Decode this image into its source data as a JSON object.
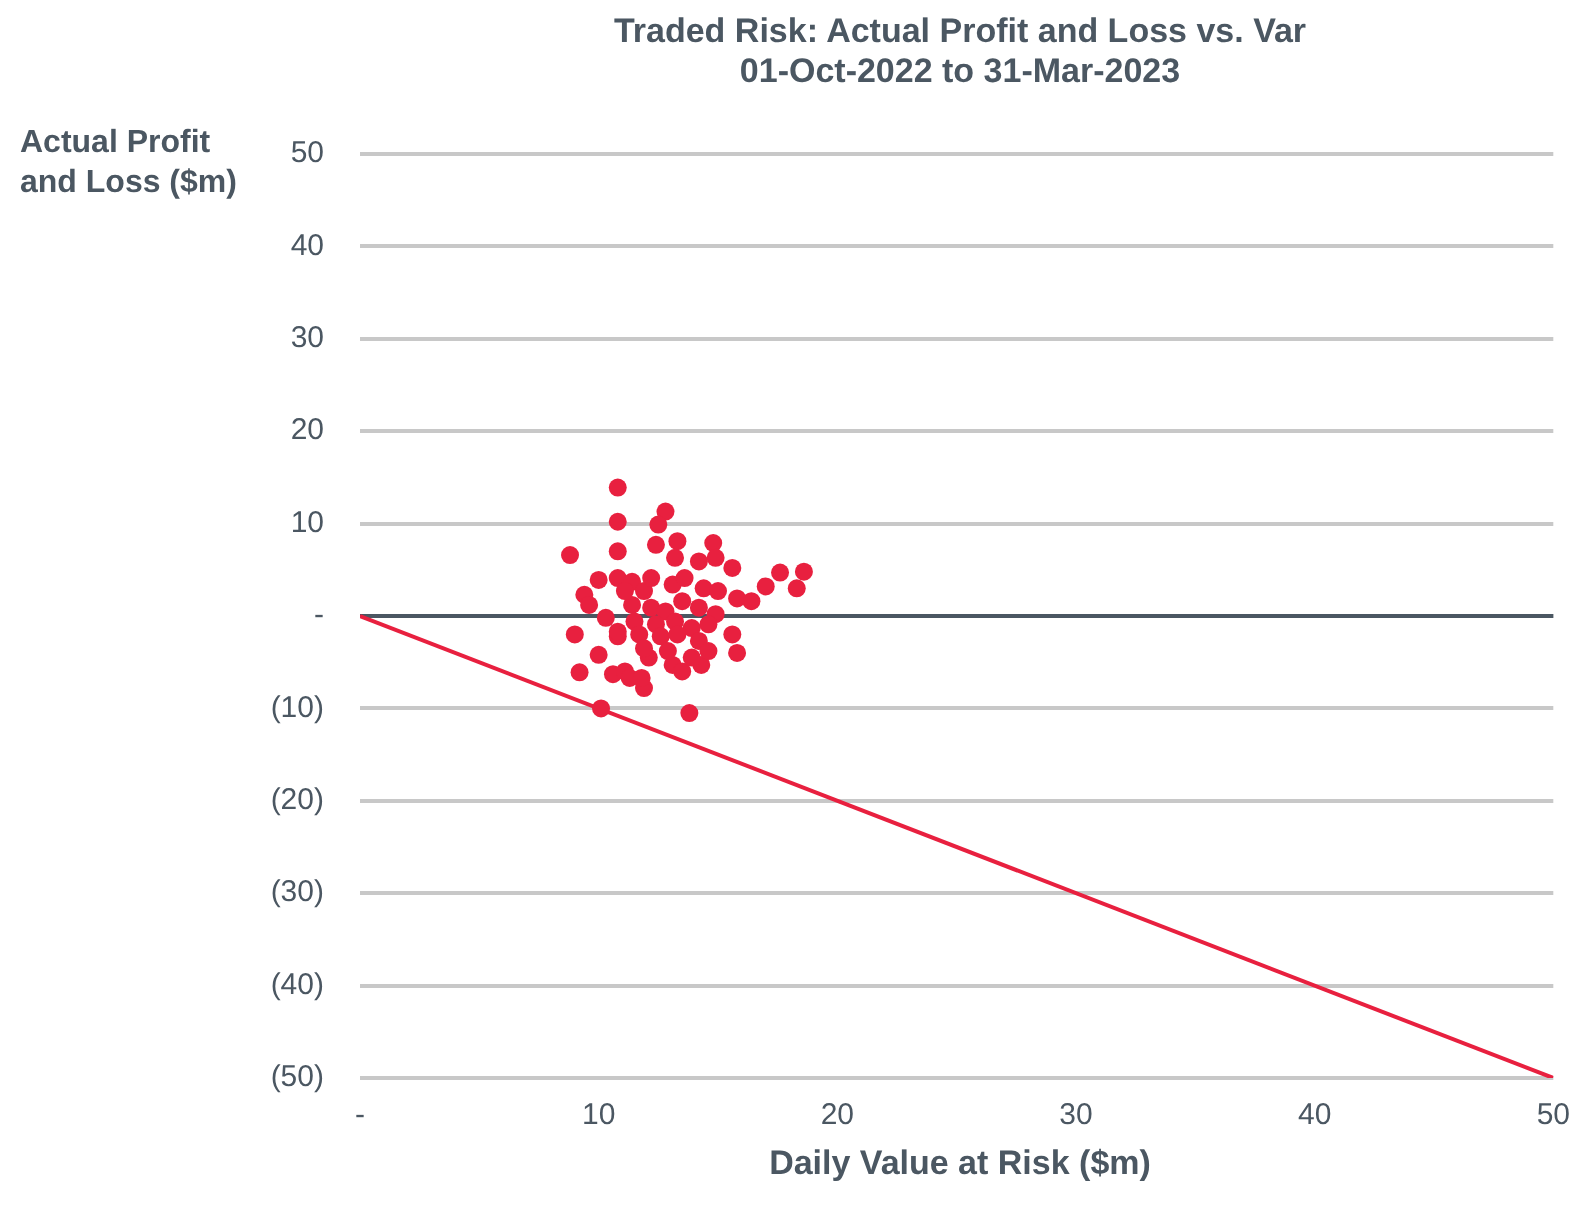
{
  "chart_data": {
    "type": "scatter",
    "title": "Traded Risk: Actual Profit and Loss vs. Var\n01-Oct-2022 to 31-Mar-2023",
    "xlabel": "Daily Value at Risk ($m)",
    "ylabel": "Actual Profit and Loss ($m)",
    "xlim": [
      0,
      50
    ],
    "xticks": [
      {
        "value": 0,
        "label": "-"
      },
      10,
      20,
      30,
      40,
      50
    ],
    "ylim": [
      -50,
      50
    ],
    "yticks": [
      {
        "value": -50,
        "label": "(50)"
      },
      {
        "value": -40,
        "label": "(40)"
      },
      {
        "value": -30,
        "label": "(30)"
      },
      {
        "value": -20,
        "label": "(20)"
      },
      {
        "value": -10,
        "label": "(10)"
      },
      {
        "value": 0,
        "label": "-"
      },
      10,
      20,
      30,
      40,
      50
    ],
    "grid": "y",
    "legend": false,
    "ref_lines": [
      {
        "axis": "y",
        "value": 0,
        "color": "#4b5762"
      }
    ],
    "series": [
      {
        "type": "scatter",
        "marker": "circle",
        "color": "#e8203f",
        "x": [
          10.8,
          10.8,
          12.8,
          10.8,
          8.8,
          12.5,
          12.4,
          13.3,
          14.8,
          13.2,
          14.2,
          14.9,
          15.6,
          17.6,
          18.6,
          18.3,
          17.0,
          16.4,
          10.0,
          10.8,
          9.4,
          9.6,
          10.3,
          9.0,
          10.8,
          10.0,
          9.2,
          10.6,
          11.1,
          11.9,
          12.1,
          13.1,
          13.5,
          14.3,
          15.6,
          15.8,
          13.8,
          10.1,
          11.4,
          11.9,
          13.1,
          13.6,
          14.4,
          15.0,
          15.8,
          11.4,
          12.2,
          12.8,
          13.5,
          14.2,
          14.9,
          11.5,
          12.4,
          13.2,
          13.9,
          14.6,
          11.7,
          12.6,
          13.3,
          14.2,
          11.9,
          12.9,
          14.6,
          11.3,
          11.8,
          12.2,
          11.1,
          10.8,
          13.9
        ],
        "values": [
          13.9,
          10.2,
          11.3,
          7.0,
          6.6,
          9.9,
          7.7,
          8.1,
          7.9,
          6.3,
          5.9,
          6.3,
          5.2,
          4.7,
          4.8,
          3.0,
          3.2,
          1.6,
          3.9,
          4.1,
          2.3,
          1.2,
          -0.2,
          -2.0,
          -2.2,
          -4.2,
          -6.1,
          -6.3,
          -6.0,
          -7.8,
          -4.5,
          -5.3,
          -6.0,
          -5.3,
          -2.0,
          -4.0,
          -10.5,
          -10.0,
          3.7,
          2.7,
          3.4,
          4.1,
          3.0,
          2.7,
          1.9,
          1.2,
          0.9,
          0.5,
          1.6,
          0.9,
          0.2,
          -0.6,
          -0.9,
          -0.6,
          -1.3,
          -0.9,
          -2.0,
          -2.2,
          -2.0,
          -2.7,
          -3.5,
          -3.8,
          -3.8,
          -6.7,
          -6.7,
          4.1,
          2.7,
          -1.7,
          -4.5
        ]
      },
      {
        "type": "line",
        "color": "#e8203f",
        "x": [
          0,
          50
        ],
        "values": [
          0,
          -50
        ]
      }
    ]
  }
}
